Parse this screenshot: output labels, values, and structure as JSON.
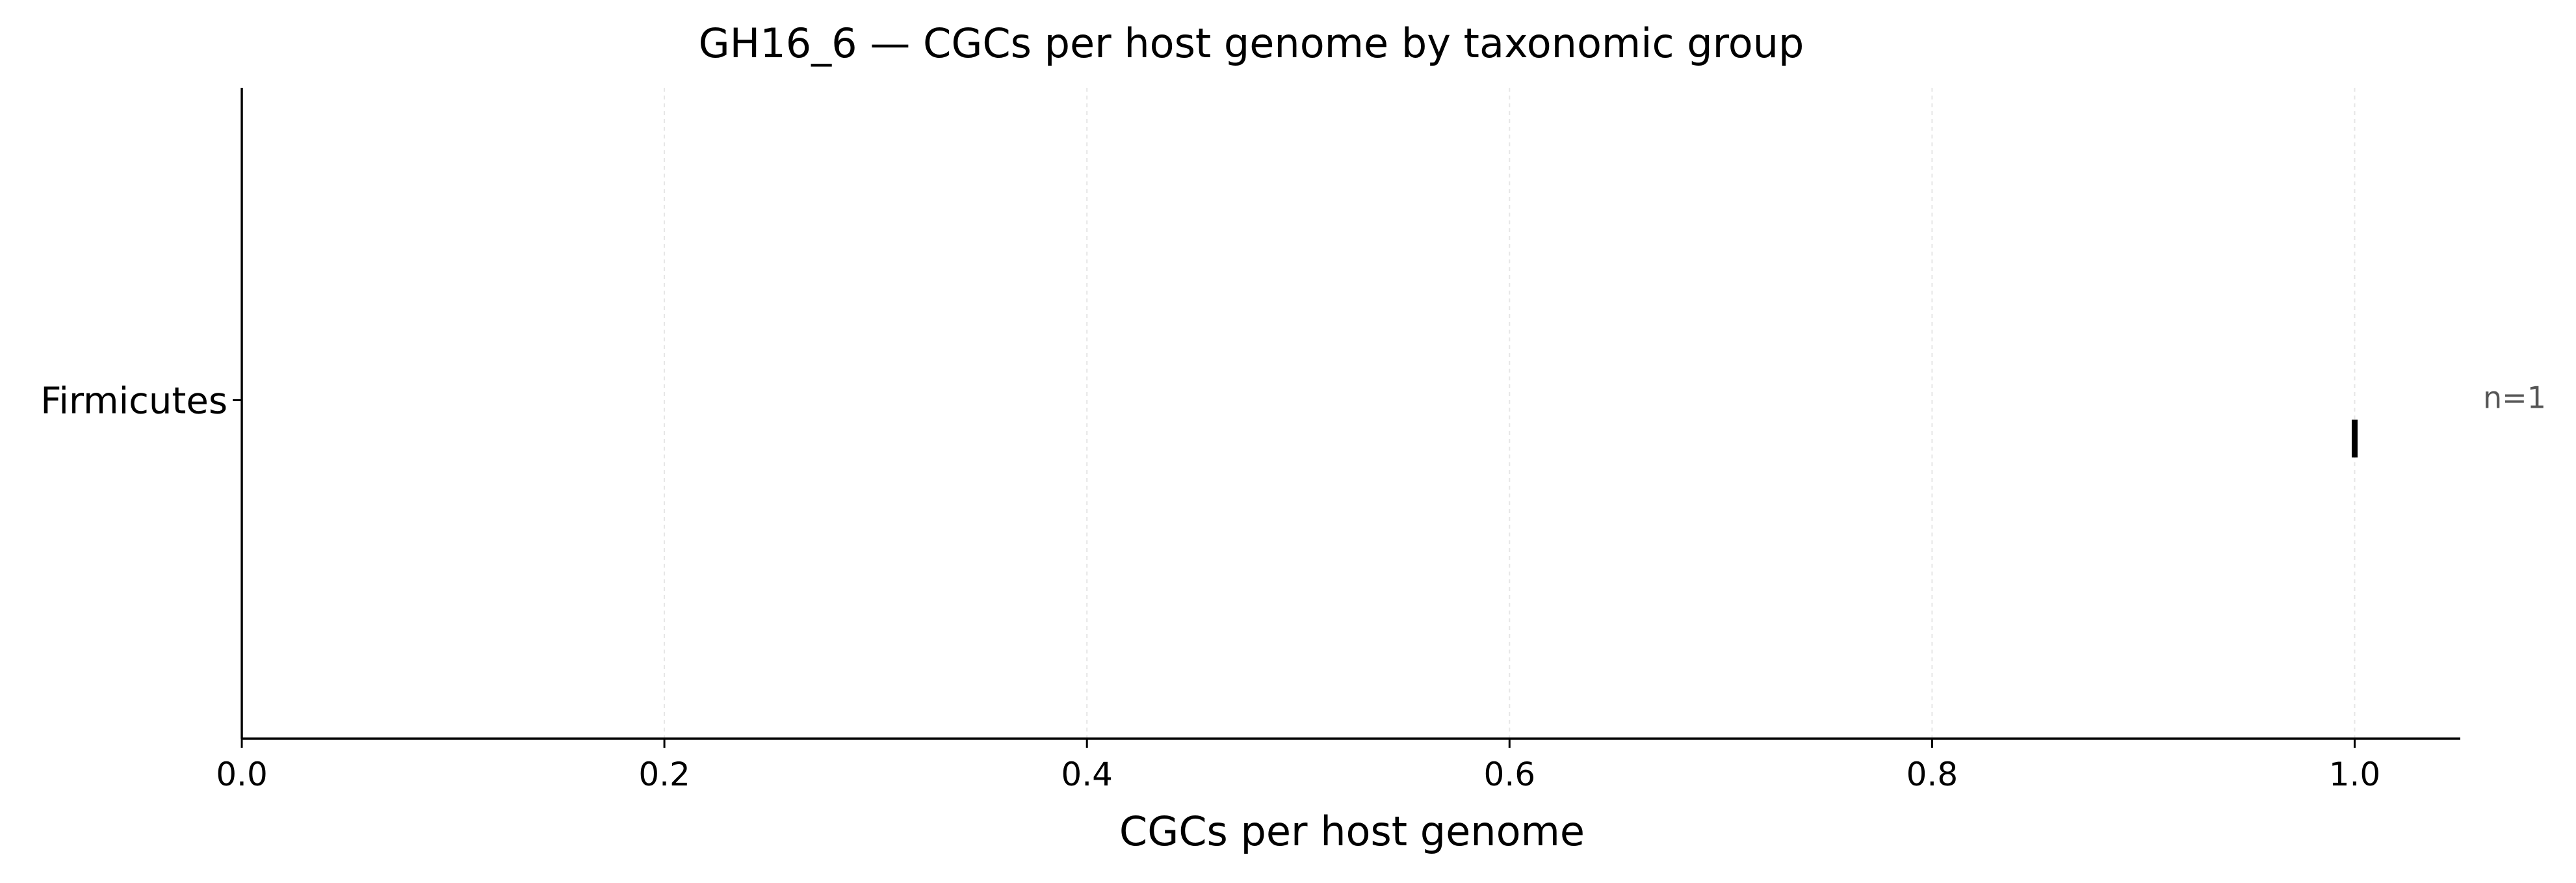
{
  "chart_data": {
    "type": "scatter",
    "title": "GH16_6 — CGCs per host genome by taxonomic group",
    "xlabel": "CGCs per host genome",
    "ylabel": "",
    "xlim": [
      0,
      1.05
    ],
    "x_ticks": [
      0.0,
      0.2,
      0.4,
      0.6,
      0.8,
      1.0
    ],
    "x_tick_labels": [
      "0.0",
      "0.2",
      "0.4",
      "0.6",
      "0.8",
      "1.0"
    ],
    "grid": "vertical dashed",
    "categories": [
      "Firmicutes"
    ],
    "series": [
      {
        "category": "Firmicutes",
        "values": [
          1.0
        ],
        "count_label": "n=1"
      }
    ],
    "marker_color": "#000000"
  }
}
